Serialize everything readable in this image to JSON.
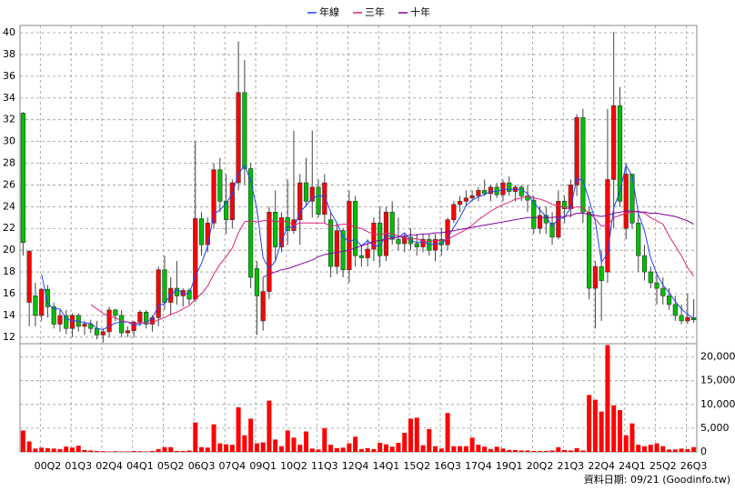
{
  "chart_data": [
    {
      "type": "candlestick",
      "categories": [
        null,
        null,
        null,
        null,
        "00Q2",
        null,
        null,
        null,
        null,
        "01Q3",
        null,
        null,
        null,
        null,
        "02Q4",
        null,
        null,
        null,
        null,
        "04Q1",
        null,
        null,
        null,
        null,
        "05Q2",
        null,
        null,
        null,
        null,
        "06Q3",
        null,
        null,
        null,
        null,
        "07Q4",
        null,
        null,
        null,
        null,
        "09Q1",
        null,
        null,
        null,
        null,
        "10Q2",
        null,
        null,
        null,
        null,
        "11Q3",
        null,
        null,
        null,
        null,
        "12Q4",
        null,
        null,
        null,
        null,
        "14Q1",
        null,
        null,
        null,
        null,
        "15Q2",
        null,
        null,
        null,
        null,
        "16Q3",
        null,
        null,
        null,
        null,
        "17Q4",
        null,
        null,
        null,
        null,
        "19Q1",
        null,
        null,
        null,
        null,
        "20Q2",
        null,
        null,
        null,
        null,
        "21Q3",
        null,
        null,
        null,
        null,
        "22Q4",
        null,
        null,
        null,
        null,
        "24Q1",
        null,
        null,
        null,
        null,
        "25Q2",
        null,
        null,
        null,
        null,
        "26Q3"
      ],
      "open": [
        32.6,
        15.2,
        15.8,
        14.0,
        16.4,
        14.8,
        13.2,
        14.0,
        12.8,
        14.0,
        13,
        13.2,
        12.8,
        12.2,
        12.5,
        14.5,
        14.0,
        12.4,
        12.6,
        13.4,
        14.3,
        13.2,
        13.8,
        18.2,
        15.2,
        16.5,
        15.8,
        16.3,
        15.5,
        22.9,
        20.5,
        22.5,
        27.4,
        24.5,
        22.8,
        26.2,
        34.5,
        27.5,
        18.3,
        13.5,
        16.2,
        23.5,
        20.3,
        23,
        21.8,
        22.8,
        26.2,
        24.5,
        25.8,
        23.3,
        22.8,
        18.5,
        21.8,
        18.2,
        24.5,
        19.5,
        19.3,
        20.1,
        22.5,
        19.5,
        23.5,
        21,
        20.6,
        21.2,
        20.6,
        20.3,
        21,
        20,
        21,
        20.5,
        22.8,
        24.2,
        24.5,
        24.8,
        25,
        25.5,
        25.2,
        25.8,
        25.1,
        26.2,
        25.4,
        25.8,
        25,
        24.6,
        22,
        23.2,
        22.5,
        21.2,
        24.5,
        23.8,
        26,
        32.2,
        23.5,
        16.5,
        18.5,
        18,
        26.5,
        33.3,
        22,
        27,
        22.5,
        19.5,
        18,
        17,
        16.5,
        15.8,
        15,
        14,
        13.5,
        13.8
      ],
      "high": [
        32.7,
        20,
        17,
        16.5,
        16.8,
        15.2,
        14.5,
        14.5,
        14.2,
        14.2,
        13.5,
        13.6,
        13.5,
        12.8,
        14.8,
        14.6,
        14.5,
        13,
        13.5,
        14.5,
        14.5,
        14,
        18.5,
        19.5,
        17.5,
        19,
        16.5,
        16.5,
        30,
        23.5,
        23,
        28,
        28.5,
        27,
        26.5,
        39.2,
        37.5,
        28,
        19,
        17.5,
        24,
        25.5,
        23.5,
        26.5,
        31,
        27,
        28.5,
        31,
        26.5,
        27,
        23.5,
        22.5,
        22,
        25.5,
        25,
        20.5,
        21,
        23,
        24,
        24,
        24.5,
        23,
        21.5,
        22,
        21.5,
        21.5,
        21.5,
        21.5,
        22,
        23,
        24.5,
        25,
        25.5,
        25.5,
        25.8,
        26.5,
        26,
        26.2,
        26.5,
        26.8,
        26,
        26,
        26,
        25,
        24,
        24,
        23.5,
        25.5,
        25,
        26.5,
        32.5,
        33,
        24,
        19,
        20,
        33,
        40.1,
        35,
        28,
        27,
        23.5,
        20.5,
        18.5,
        18,
        17.5,
        16.5,
        15.8,
        15,
        16,
        15.5
      ],
      "low": [
        19.5,
        13,
        13,
        13.5,
        13.8,
        12.8,
        12.5,
        12.3,
        12,
        12.5,
        12.2,
        12.4,
        11.8,
        11.5,
        12,
        13.5,
        12,
        12,
        12,
        13,
        12.8,
        12.5,
        13,
        14.5,
        14,
        15,
        14.8,
        15,
        15.2,
        19.5,
        19.8,
        22,
        23.5,
        21.5,
        22,
        25.5,
        26,
        16.5,
        12.2,
        12.6,
        15.5,
        19,
        19.8,
        20.5,
        21.5,
        20.5,
        24,
        23,
        23,
        22.5,
        17.5,
        17.8,
        17.5,
        17,
        18.5,
        18.5,
        18.5,
        19,
        18.5,
        19,
        20.5,
        20,
        19.8,
        20,
        19.5,
        19.8,
        19.5,
        19,
        19.5,
        20,
        22.5,
        23.5,
        24,
        24.5,
        24.5,
        25,
        24.5,
        24.8,
        24.5,
        25,
        24.5,
        24.5,
        23.5,
        21.5,
        21.5,
        21.5,
        20.5,
        21,
        22.5,
        23,
        25,
        22.5,
        15.5,
        12.8,
        13.5,
        17,
        22,
        24,
        21,
        22,
        18,
        17.2,
        16.5,
        15,
        15,
        14.5,
        13.5,
        13.2,
        13.2,
        13.3
      ],
      "close": [
        20.7,
        19.9,
        14.0,
        16.4,
        14.8,
        13.2,
        14.0,
        12.8,
        14.0,
        13.0,
        13.2,
        12.8,
        12.2,
        12.5,
        14.5,
        14.0,
        12.4,
        12.6,
        13.4,
        14.3,
        13.2,
        13.8,
        18.2,
        15.2,
        16.5,
        15.8,
        16.3,
        15.5,
        22.9,
        20.5,
        22.5,
        27.4,
        24.5,
        22.8,
        26.2,
        34.5,
        27.5,
        17.5,
        15.8,
        16.2,
        23.5,
        20.3,
        23,
        21.8,
        22.8,
        26.2,
        24.5,
        25.8,
        23.3,
        26.2,
        18.5,
        21.8,
        18.2,
        24.5,
        19.5,
        19.3,
        20.1,
        22.5,
        19.5,
        23.5,
        21.0,
        20.6,
        21.2,
        20.6,
        20.3,
        21.0,
        20.0,
        21.0,
        20.5,
        22.8,
        24.2,
        24.5,
        24.8,
        25.0,
        25.5,
        25.2,
        25.8,
        25.1,
        26.2,
        25.4,
        25.8,
        25,
        24.6,
        22,
        23.2,
        22.5,
        21.2,
        24.5,
        23.8,
        26,
        32.2,
        23.5,
        16.5,
        18.5,
        17.2,
        26.5,
        33.3,
        24.5,
        27,
        22.5,
        19.5,
        18,
        17,
        16.5,
        15.8,
        15,
        14,
        13.5,
        13.8,
        13.6
      ],
      "up_color": "#ff0000",
      "down_color": "#00c000",
      "series": [
        {
          "name": "年線",
          "color": "#2244ff",
          "values": [
            null,
            null,
            null,
            17.8,
            15.1,
            14.6,
            14.6,
            13.7,
            13.5,
            13.5,
            13.3,
            13.3,
            12.8,
            12.7,
            13.0,
            13.3,
            13.4,
            13.4,
            13.1,
            13.2,
            13.4,
            13.7,
            14.9,
            15.1,
            15.9,
            16.4,
            16.0,
            16.0,
            17.6,
            18.8,
            20.4,
            23.3,
            23.7,
            24.3,
            25.2,
            27.0,
            27.8,
            26.4,
            23.8,
            19.3,
            18.3,
            19.0,
            20.8,
            22.2,
            22.0,
            23.5,
            24.1,
            24.8,
            25.0,
            25.0,
            23.5,
            22.5,
            21.2,
            20.8,
            21.0,
            20.4,
            20.9,
            20.4,
            20.4,
            21.4,
            21.2,
            21.2,
            21.6,
            20.9,
            20.7,
            20.8,
            20.5,
            20.6,
            20.6,
            21.1,
            22.1,
            23.0,
            24.1,
            24.6,
            24.9,
            25.1,
            25.4,
            25.4,
            25.6,
            25.6,
            25.6,
            25.6,
            25.2,
            24.4,
            23.7,
            23.1,
            22.2,
            22.9,
            23.0,
            23.9,
            26.6,
            26.4,
            24.6,
            22.7,
            18.9,
            19.7,
            23.9,
            25.4,
            27.8,
            26.8,
            23.4,
            21.8,
            19.3,
            17.8,
            16.8,
            16.1,
            15.3,
            14.6,
            14.1,
            13.7
          ]
        },
        {
          "name": "三年",
          "color": "#e0207a",
          "values": [
            null,
            null,
            null,
            null,
            null,
            null,
            null,
            null,
            null,
            null,
            null,
            15.0,
            14.6,
            14.2,
            13.9,
            13.8,
            13.5,
            13.4,
            13.3,
            13.3,
            13.3,
            13.3,
            13.6,
            13.8,
            14.1,
            14.3,
            14.6,
            14.9,
            15.5,
            16.0,
            16.7,
            17.8,
            18.7,
            19.4,
            20.2,
            21.6,
            22.6,
            22.7,
            22.6,
            22.7,
            22.8,
            22.6,
            22.7,
            22.6,
            22.3,
            22.5,
            22.5,
            22.5,
            22.5,
            22.5,
            22.2,
            22.3,
            22.4,
            22.4,
            22.1,
            22.0,
            21.7,
            21.5,
            21.4,
            21.6,
            21.5,
            21.3,
            21.1,
            21.0,
            21.1,
            20.8,
            20.8,
            20.9,
            20.9,
            21.0,
            21.3,
            21.6,
            21.9,
            22.3,
            22.8,
            23.2,
            23.6,
            23.9,
            24.2,
            24.4,
            24.7,
            24.8,
            25.0,
            24.8,
            24.7,
            24.5,
            24.2,
            24.1,
            23.9,
            23.8,
            24.0,
            23.9,
            23.4,
            22.9,
            22.2,
            22.3,
            23.0,
            23.2,
            23.4,
            23.5,
            23.6,
            23.4,
            23.0,
            22.7,
            22.4,
            21.3,
            20.4,
            19.5,
            18.4,
            17.6
          ]
        },
        {
          "name": "十年",
          "color": "#8000a0",
          "values": [
            null,
            null,
            null,
            null,
            null,
            null,
            null,
            null,
            null,
            null,
            null,
            null,
            null,
            null,
            null,
            null,
            null,
            null,
            null,
            null,
            null,
            null,
            null,
            null,
            null,
            null,
            null,
            null,
            null,
            null,
            null,
            null,
            null,
            null,
            null,
            null,
            null,
            null,
            null,
            17.5,
            17.8,
            18.0,
            18.2,
            18.3,
            18.5,
            18.7,
            18.9,
            19.1,
            19.4,
            19.6,
            19.7,
            19.8,
            19.9,
            20.0,
            20.2,
            20.4,
            20.6,
            20.8,
            20.9,
            21.0,
            21.1,
            21.2,
            21.3,
            21.4,
            21.4,
            21.5,
            21.5,
            21.6,
            21.6,
            21.7,
            21.8,
            21.9,
            22.0,
            22.1,
            22.2,
            22.3,
            22.4,
            22.5,
            22.6,
            22.7,
            22.8,
            22.9,
            23.0,
            23.0,
            23.0,
            23.0,
            23.0,
            23.1,
            23.1,
            23.2,
            23.4,
            23.4,
            23.3,
            23.2,
            23.1,
            23.2,
            23.4,
            23.5,
            23.6,
            23.6,
            23.5,
            23.5,
            23.4,
            23.4,
            23.3,
            23.2,
            23.1,
            22.9,
            22.7,
            22.4
          ]
        }
      ],
      "ylim": [
        11.4,
        40.67
      ],
      "yticks": [
        12,
        14,
        16,
        18,
        20,
        22,
        24,
        26,
        28,
        30,
        32,
        34,
        36,
        38,
        40
      ],
      "grid": true
    },
    {
      "type": "bar",
      "values": [
        4500,
        2200,
        700,
        900,
        800,
        700,
        600,
        1100,
        900,
        1300,
        400,
        300,
        200,
        150,
        100,
        150,
        100,
        100,
        200,
        150,
        100,
        200,
        600,
        1000,
        1000,
        200,
        200,
        300,
        6200,
        1000,
        900,
        5800,
        1800,
        1600,
        1500,
        9400,
        3500,
        7000,
        1800,
        2000,
        10800,
        2600,
        1200,
        4500,
        3000,
        1500,
        4300,
        700,
        500,
        5000,
        1500,
        800,
        900,
        1800,
        3200,
        600,
        800,
        600,
        1900,
        1600,
        1100,
        1900,
        4000,
        7000,
        7200,
        1400,
        4800,
        1200,
        700,
        8200,
        1200,
        1200,
        1200,
        3000,
        1500,
        1100,
        600,
        1100,
        700,
        400,
        400,
        300,
        300,
        200,
        200,
        200,
        300,
        1000,
        400,
        300,
        800,
        300,
        12000,
        11000,
        8500,
        22500,
        9800,
        8800,
        3500,
        6000,
        1500,
        1200,
        1500,
        1800,
        1200,
        500,
        500,
        700,
        600,
        1000
      ],
      "color": "#ff0000",
      "ylim": [
        0,
        22800
      ],
      "yticks": [
        0,
        {
          "value": 5000,
          "label": "5,000"
        },
        {
          "value": 10000,
          "label": "10,000"
        },
        {
          "value": 15000,
          "label": "15,000"
        },
        {
          "value": 20000,
          "label": "20,000"
        }
      ],
      "grid": true,
      "footnote": "資料日期: 09/21 (Goodinfo.tw)"
    }
  ]
}
